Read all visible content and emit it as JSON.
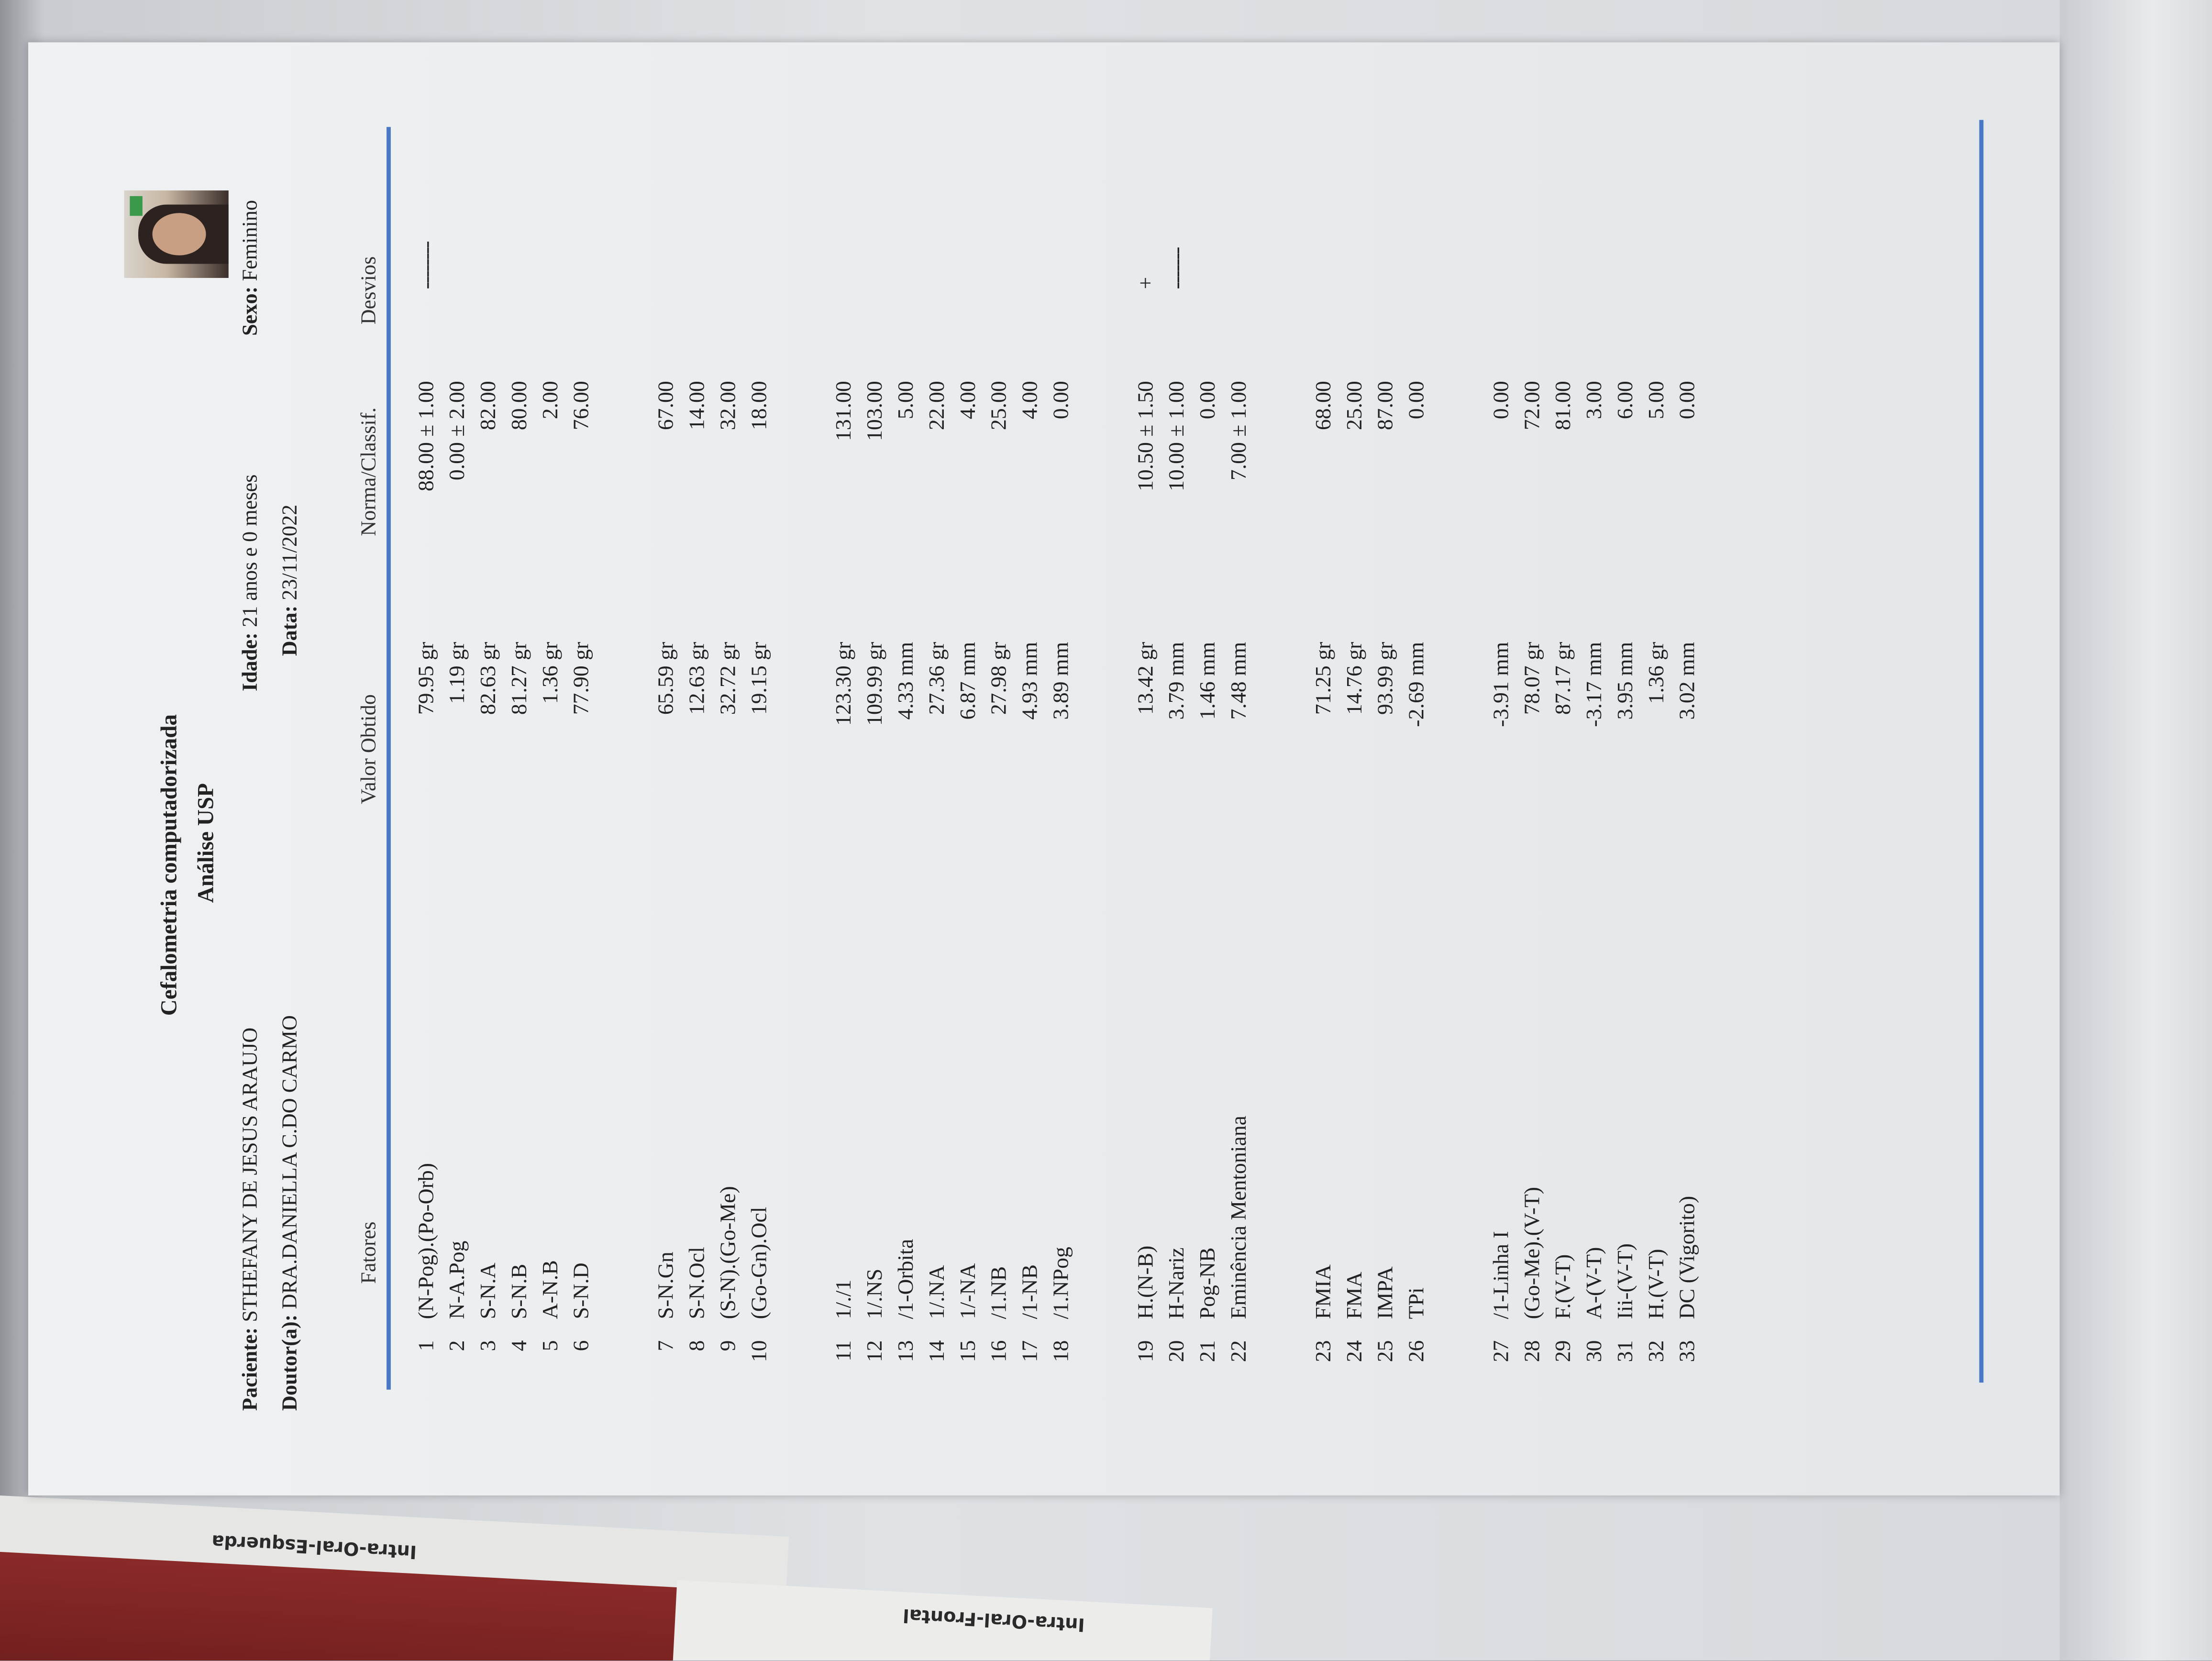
{
  "background_labels": {
    "left": "Intra-Oral-Esquerda",
    "right": "Intra-Oral-Frontal"
  },
  "colors": {
    "rule": "#4a78c4",
    "paper": "#eceef1"
  },
  "report": {
    "title": "Cefalometria computadorizada",
    "subtitle": "Análise USP",
    "patient_label": "Paciente:",
    "patient": "STHEFANY DE JESUS ARAUJO",
    "doctor_label": "Doutor(a):",
    "doctor": "DRA.DANIELLA C.DO CARMO",
    "age_label": "Idade:",
    "age": "21 anos e 0 meses",
    "date_label": "Data:",
    "date": "23/11/2022",
    "sex_label": "Sexo:",
    "sex": "Feminino"
  },
  "columns": {
    "factors": "Fatores",
    "value": "Valor Obtido",
    "norm": "Norma/Classif.",
    "deviation": "Desvios"
  },
  "groups": [
    [
      [
        "1",
        "(N-Pog).(Po-Orb)",
        "79.95 gr",
        "88.00 ± 1.00",
        "--------"
      ],
      [
        "2",
        "N-A.Pog",
        "1.19 gr",
        "0.00 ± 2.00",
        ""
      ],
      [
        "3",
        "S-N.A",
        "82.63 gr",
        "82.00",
        ""
      ],
      [
        "4",
        "S-N.B",
        "81.27 gr",
        "80.00",
        ""
      ],
      [
        "5",
        "A-N.B",
        "1.36 gr",
        "2.00",
        ""
      ],
      [
        "6",
        "S-N.D",
        "77.90 gr",
        "76.00",
        ""
      ]
    ],
    [
      [
        "7",
        "S-N.Gn",
        "65.59 gr",
        "67.00",
        ""
      ],
      [
        "8",
        "S-N.Ocl",
        "12.63 gr",
        "14.00",
        ""
      ],
      [
        "9",
        "(S-N).(Go-Me)",
        "32.72 gr",
        "32.00",
        ""
      ],
      [
        "10",
        "(Go-Gn).Ocl",
        "19.15 gr",
        "18.00",
        ""
      ]
    ],
    [
      [
        "11",
        "1/./1",
        "123.30 gr",
        "131.00",
        ""
      ],
      [
        "12",
        "1/.NS",
        "109.99 gr",
        "103.00",
        ""
      ],
      [
        "13",
        "/1-Orbita",
        "4.33 mm",
        "5.00",
        ""
      ],
      [
        "14",
        "1/.NA",
        "27.36 gr",
        "22.00",
        ""
      ],
      [
        "15",
        "1/-NA",
        "6.87 mm",
        "4.00",
        ""
      ],
      [
        "16",
        "/1.NB",
        "27.98 gr",
        "25.00",
        ""
      ],
      [
        "17",
        "/1-NB",
        "4.93 mm",
        "4.00",
        ""
      ],
      [
        "18",
        "/1.NPog",
        "3.89 mm",
        "0.00",
        ""
      ]
    ],
    [
      [
        "19",
        "H.(N-B)",
        "13.42 gr",
        "10.50 ± 1.50",
        "+"
      ],
      [
        "20",
        "H-Nariz",
        "3.79 mm",
        "10.00 ± 1.00",
        "-------"
      ],
      [
        "21",
        "Pog-NB",
        "1.46 mm",
        "0.00",
        ""
      ],
      [
        "22",
        "Eminência Mentoniana",
        "7.48 mm",
        "7.00 ± 1.00",
        ""
      ]
    ],
    [
      [
        "23",
        "FMIA",
        "71.25 gr",
        "68.00",
        ""
      ],
      [
        "24",
        "FMA",
        "14.76 gr",
        "25.00",
        ""
      ],
      [
        "25",
        "IMPA",
        "93.99 gr",
        "87.00",
        ""
      ],
      [
        "26",
        "TPi",
        "-2.69 mm",
        "0.00",
        ""
      ]
    ],
    [
      [
        "27",
        "/1-Linha I",
        "-3.91 mm",
        "0.00",
        ""
      ],
      [
        "28",
        "(Go-Me).(V-T)",
        "78.07 gr",
        "72.00",
        ""
      ],
      [
        "29",
        "F.(V-T)",
        "87.17 gr",
        "81.00",
        ""
      ],
      [
        "30",
        "A-(V-T)",
        "-3.17 mm",
        "3.00",
        ""
      ],
      [
        "31",
        "Iii-(V-T)",
        "3.95 mm",
        "6.00",
        ""
      ],
      [
        "32",
        "H.(V-T)",
        "1.36 gr",
        "5.00",
        ""
      ],
      [
        "33",
        "DC (Vigorito)",
        "3.02 mm",
        "0.00",
        ""
      ]
    ]
  ]
}
